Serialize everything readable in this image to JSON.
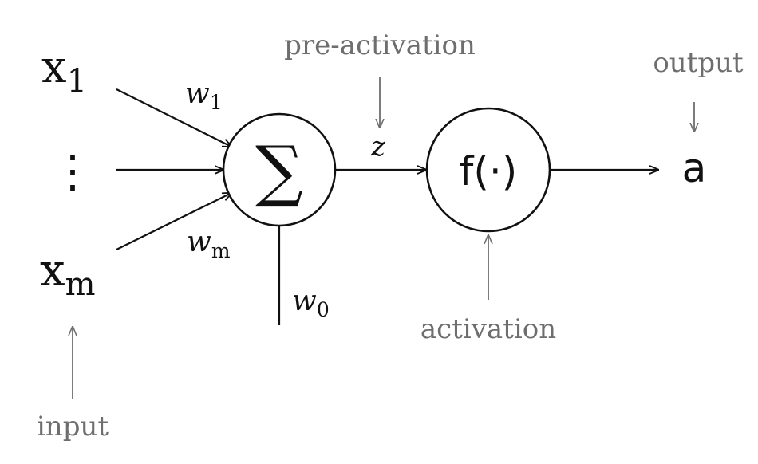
{
  "labels": {
    "x1": {
      "base": "x",
      "sub": "1"
    },
    "xm": {
      "base": "x",
      "sub": "m"
    },
    "vdots": "⋮",
    "w1": {
      "base": "w",
      "sub": "1"
    },
    "wm": {
      "base": "w",
      "sub": "m"
    },
    "w0": {
      "base": "w",
      "sub": "0"
    },
    "sum_symbol": "∑",
    "z": "z",
    "activation_fn": "f(·)",
    "output_symbol": "a"
  },
  "annotations": {
    "pre_activation": "pre-activation",
    "output": "output",
    "activation": "activation",
    "input": "input"
  },
  "colors": {
    "ink": "#111111",
    "annotation": "#6e6e6e",
    "background": "#ffffff"
  }
}
